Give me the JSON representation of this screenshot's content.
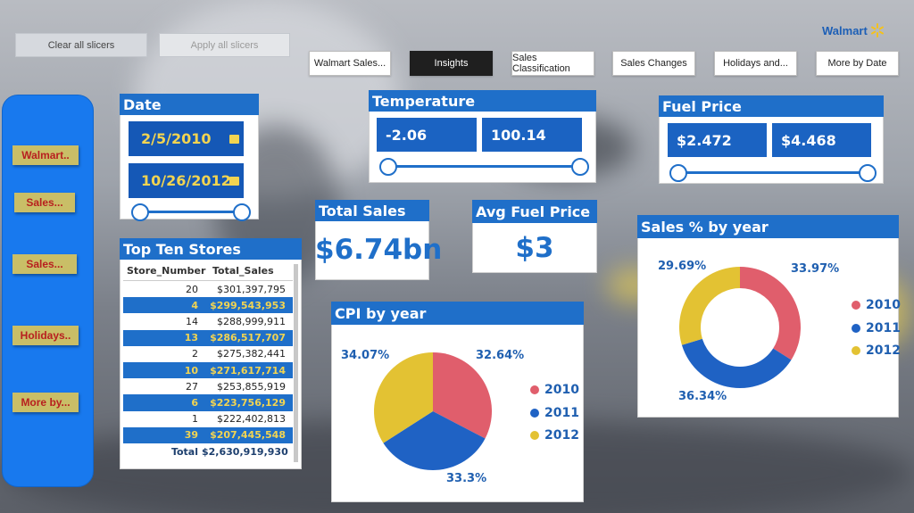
{
  "colors": {
    "accent": "#1f6fc9",
    "yellow": "#e3c233",
    "red": "#e05e6c",
    "blue": "#1f62c4",
    "side_btn_text": "#b81f1f"
  },
  "slicers": {
    "clear_label": "Clear all slicers",
    "apply_label": "Apply all slicers"
  },
  "nav": {
    "tabs": [
      {
        "label": "Walmart Sales..."
      },
      {
        "label": "Insights"
      },
      {
        "label": "Sales Classification"
      },
      {
        "label": "Sales Changes"
      },
      {
        "label": "Holidays and..."
      },
      {
        "label": "More by Date"
      }
    ]
  },
  "brand": {
    "logo_text": "Walmart",
    "logo_icon": "spark-icon"
  },
  "sidebar": {
    "items": [
      {
        "label": "Walmart.."
      },
      {
        "label": "Sales..."
      },
      {
        "label": "Sales..."
      },
      {
        "label": "Holidays.."
      },
      {
        "label": "More by..."
      }
    ]
  },
  "date_filter": {
    "title": "Date",
    "start": "2/5/2010",
    "end": "10/26/2012"
  },
  "temperature_filter": {
    "title": "Temperature",
    "min": "-2.06",
    "max": "100.14"
  },
  "fuel_filter": {
    "title": "Fuel Price",
    "min": "$2.472",
    "max": "$4.468"
  },
  "kpis": {
    "total_sales_title": "Total Sales",
    "total_sales_value": "$6.74bn",
    "avg_fuel_title": "Avg Fuel Price",
    "avg_fuel_value": "$3"
  },
  "top_stores": {
    "title": "Top Ten Stores",
    "columns": [
      "Store_Number",
      "Total_Sales"
    ],
    "rows": [
      [
        "20",
        "$301,397,795"
      ],
      [
        "4",
        "$299,543,953"
      ],
      [
        "14",
        "$288,999,911"
      ],
      [
        "13",
        "$286,517,707"
      ],
      [
        "2",
        "$275,382,441"
      ],
      [
        "10",
        "$271,617,714"
      ],
      [
        "27",
        "$253,855,919"
      ],
      [
        "6",
        "$223,756,129"
      ],
      [
        "1",
        "$222,402,813"
      ],
      [
        "39",
        "$207,445,548"
      ]
    ],
    "total_label": "Total",
    "total_value": "$2,630,919,930"
  },
  "cpi_chart": {
    "title": "CPI by year",
    "labels": {
      "y2010": "32.64%",
      "y2011": "33.3%",
      "y2012": "34.07%"
    },
    "legend": [
      "2010",
      "2011",
      "2012"
    ]
  },
  "sales_chart": {
    "title": "Sales % by year",
    "labels": {
      "y2010": "33.97%",
      "y2011": "36.34%",
      "y2012": "29.69%"
    },
    "legend": [
      "2010",
      "2011",
      "2012"
    ]
  },
  "chart_data": [
    {
      "type": "pie",
      "title": "CPI by year",
      "categories": [
        "2010",
        "2011",
        "2012"
      ],
      "values": [
        32.64,
        33.3,
        34.07
      ],
      "colors": [
        "#e05e6c",
        "#1f62c4",
        "#e3c233"
      ],
      "legend": "right"
    },
    {
      "type": "pie",
      "title": "Sales % by year",
      "categories": [
        "2010",
        "2011",
        "2012"
      ],
      "values": [
        33.97,
        36.34,
        29.69
      ],
      "colors": [
        "#e05e6c",
        "#1f62c4",
        "#e3c233"
      ],
      "legend": "right"
    }
  ]
}
